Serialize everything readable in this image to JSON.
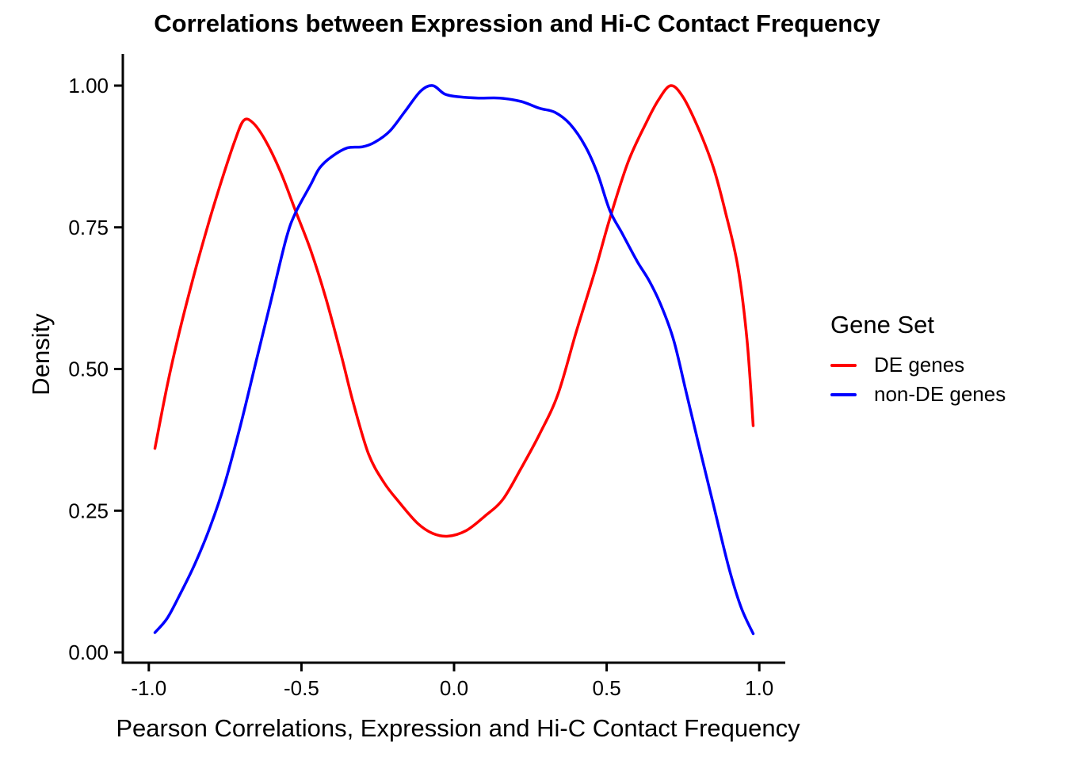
{
  "title": "Correlations between Expression and Hi-C Contact Frequency",
  "axes": {
    "x": {
      "label": "Pearson Correlations, Expression and Hi-C Contact Frequency",
      "ticks": [
        {
          "value": -1.0,
          "label": "-1.0"
        },
        {
          "value": -0.5,
          "label": "-0.5"
        },
        {
          "value": 0.0,
          "label": "0.0"
        },
        {
          "value": 0.5,
          "label": "0.5"
        },
        {
          "value": 1.0,
          "label": "1.0"
        }
      ]
    },
    "y": {
      "label": "Density",
      "ticks": [
        {
          "value": 0.0,
          "label": "0.00"
        },
        {
          "value": 0.25,
          "label": "0.25"
        },
        {
          "value": 0.5,
          "label": "0.50"
        },
        {
          "value": 0.75,
          "label": "0.75"
        },
        {
          "value": 1.0,
          "label": "1.00"
        }
      ]
    }
  },
  "legend": {
    "title": "Gene Set",
    "items": [
      {
        "label": "DE genes",
        "color": "#ff0000"
      },
      {
        "label": "non-DE genes",
        "color": "#0000ff"
      }
    ]
  },
  "chart_data": {
    "type": "line",
    "subtype": "density",
    "title": "Correlations between Expression and Hi-C Contact Frequency",
    "xlabel": "Pearson Correlations, Expression and Hi-C Contact Frequency",
    "ylabel": "Density",
    "xlim": [
      -1.09,
      1.09
    ],
    "ylim": [
      -0.02,
      1.05
    ],
    "x_ticks": [
      -1.0,
      -0.5,
      0.0,
      0.5,
      1.0
    ],
    "y_ticks": [
      0.0,
      0.25,
      0.5,
      0.75,
      1.0
    ],
    "grid": false,
    "legend_position": "right",
    "legend_title": "Gene Set",
    "series": [
      {
        "name": "DE genes",
        "color": "#ff0000",
        "points": [
          [
            -0.98,
            0.36
          ],
          [
            -0.94,
            0.47
          ],
          [
            -0.9,
            0.565
          ],
          [
            -0.85,
            0.67
          ],
          [
            -0.8,
            0.765
          ],
          [
            -0.76,
            0.835
          ],
          [
            -0.72,
            0.9
          ],
          [
            -0.69,
            0.938
          ],
          [
            -0.66,
            0.935
          ],
          [
            -0.62,
            0.905
          ],
          [
            -0.57,
            0.85
          ],
          [
            -0.52,
            0.78
          ],
          [
            -0.47,
            0.71
          ],
          [
            -0.42,
            0.625
          ],
          [
            -0.37,
            0.525
          ],
          [
            -0.33,
            0.44
          ],
          [
            -0.28,
            0.35
          ],
          [
            -0.23,
            0.3
          ],
          [
            -0.18,
            0.265
          ],
          [
            -0.12,
            0.228
          ],
          [
            -0.07,
            0.21
          ],
          [
            -0.02,
            0.205
          ],
          [
            0.04,
            0.215
          ],
          [
            0.1,
            0.24
          ],
          [
            0.16,
            0.27
          ],
          [
            0.22,
            0.325
          ],
          [
            0.28,
            0.385
          ],
          [
            0.34,
            0.455
          ],
          [
            0.4,
            0.565
          ],
          [
            0.46,
            0.67
          ],
          [
            0.51,
            0.765
          ],
          [
            0.57,
            0.865
          ],
          [
            0.63,
            0.935
          ],
          [
            0.67,
            0.975
          ],
          [
            0.71,
            1.0
          ],
          [
            0.75,
            0.98
          ],
          [
            0.8,
            0.925
          ],
          [
            0.85,
            0.855
          ],
          [
            0.89,
            0.775
          ],
          [
            0.93,
            0.68
          ],
          [
            0.96,
            0.55
          ],
          [
            0.98,
            0.4
          ]
        ]
      },
      {
        "name": "non-DE genes",
        "color": "#0000ff",
        "points": [
          [
            -0.98,
            0.035
          ],
          [
            -0.94,
            0.06
          ],
          [
            -0.9,
            0.1
          ],
          [
            -0.85,
            0.155
          ],
          [
            -0.8,
            0.22
          ],
          [
            -0.75,
            0.3
          ],
          [
            -0.7,
            0.4
          ],
          [
            -0.65,
            0.51
          ],
          [
            -0.6,
            0.62
          ],
          [
            -0.55,
            0.73
          ],
          [
            -0.52,
            0.775
          ],
          [
            -0.47,
            0.825
          ],
          [
            -0.44,
            0.855
          ],
          [
            -0.4,
            0.875
          ],
          [
            -0.35,
            0.89
          ],
          [
            -0.3,
            0.892
          ],
          [
            -0.26,
            0.9
          ],
          [
            -0.21,
            0.92
          ],
          [
            -0.16,
            0.955
          ],
          [
            -0.11,
            0.99
          ],
          [
            -0.07,
            1.0
          ],
          [
            -0.03,
            0.985
          ],
          [
            0.02,
            0.98
          ],
          [
            0.08,
            0.978
          ],
          [
            0.15,
            0.978
          ],
          [
            0.22,
            0.972
          ],
          [
            0.28,
            0.96
          ],
          [
            0.33,
            0.953
          ],
          [
            0.38,
            0.932
          ],
          [
            0.43,
            0.893
          ],
          [
            0.47,
            0.845
          ],
          [
            0.51,
            0.78
          ],
          [
            0.55,
            0.74
          ],
          [
            0.6,
            0.69
          ],
          [
            0.64,
            0.655
          ],
          [
            0.68,
            0.61
          ],
          [
            0.72,
            0.55
          ],
          [
            0.76,
            0.46
          ],
          [
            0.8,
            0.37
          ],
          [
            0.85,
            0.26
          ],
          [
            0.9,
            0.15
          ],
          [
            0.94,
            0.08
          ],
          [
            0.98,
            0.033
          ]
        ]
      }
    ]
  }
}
